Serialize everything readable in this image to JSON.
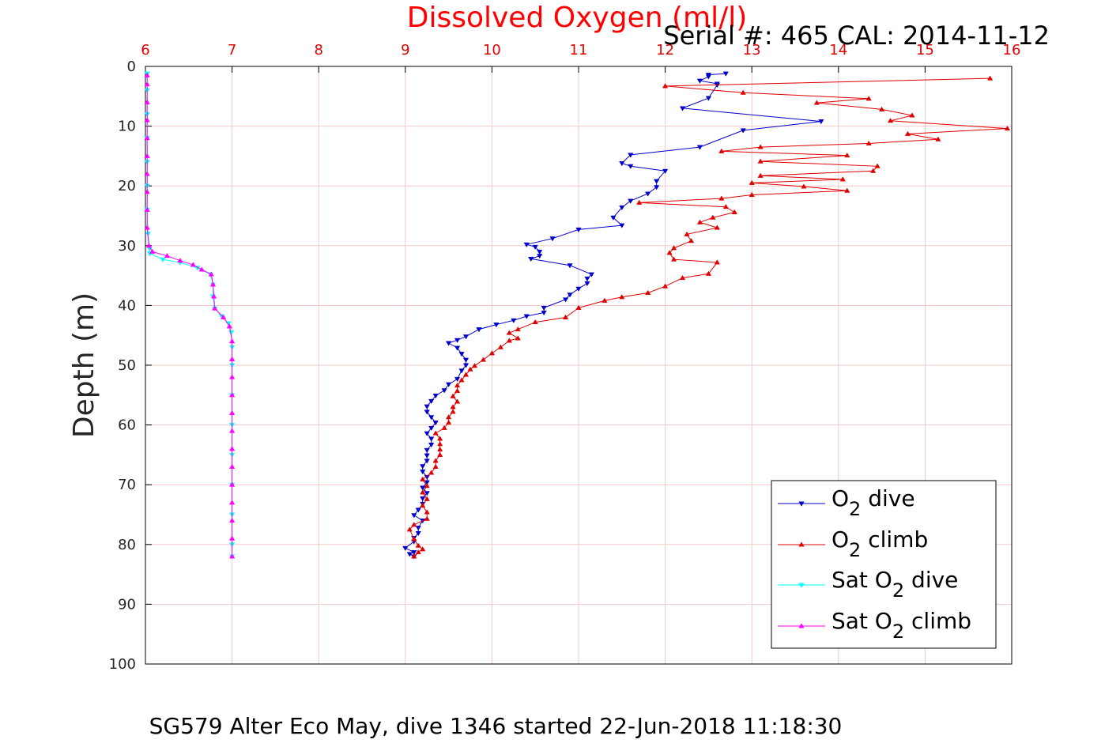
{
  "chart_data": {
    "type": "line",
    "title": "Dissolved Oxygen (ml/l)",
    "subtitle": "Serial #: 465  CAL: 2014-11-12",
    "caption": "SG579 Alter Eco May, dive 1346 started 22-Jun-2018 11:18:30",
    "xlabel": "",
    "ylabel": "Depth (m)",
    "xlim": [
      6,
      16
    ],
    "ylim": [
      0,
      100
    ],
    "y_reversed": true,
    "x_axis_position": "top",
    "grid": true,
    "legend_position": "lower-right",
    "x_ticks": [
      "6",
      "7",
      "8",
      "9",
      "10",
      "11",
      "12",
      "13",
      "14",
      "15",
      "16"
    ],
    "y_ticks": [
      "0",
      "10",
      "20",
      "30",
      "40",
      "50",
      "60",
      "70",
      "80",
      "90",
      "100"
    ],
    "colors": {
      "title": "#ff0000",
      "x_ticks": "#e00000",
      "grid": "#f3c8c8"
    },
    "series": [
      {
        "name": "O2 dive",
        "legend": {
          "pre": "O",
          "sub": "2",
          "post": " dive"
        },
        "color": "#0000cc",
        "marker": "triangle-down",
        "points": [
          [
            12.7,
            1.2
          ],
          [
            12.5,
            1.4
          ],
          [
            12.5,
            1.7
          ],
          [
            12.4,
            2.4
          ],
          [
            12.6,
            2.9
          ],
          [
            12.6,
            3.1
          ],
          [
            12.5,
            5.3
          ],
          [
            12.2,
            7
          ],
          [
            13.8,
            9.2
          ],
          [
            12.9,
            10.7
          ],
          [
            12.4,
            13.5
          ],
          [
            11.6,
            14.8
          ],
          [
            11.5,
            16.2
          ],
          [
            11.6,
            16.7
          ],
          [
            12.0,
            17.5
          ],
          [
            11.9,
            19.2
          ],
          [
            11.9,
            20.2
          ],
          [
            11.8,
            21.3
          ],
          [
            11.6,
            22.5
          ],
          [
            11.5,
            23.6
          ],
          [
            11.4,
            25.3
          ],
          [
            11.5,
            26.6
          ],
          [
            11.0,
            27.3
          ],
          [
            10.7,
            28.8
          ],
          [
            10.4,
            29.8
          ],
          [
            10.5,
            30.2
          ],
          [
            10.55,
            31.0
          ],
          [
            10.55,
            31.7
          ],
          [
            10.45,
            32.2
          ],
          [
            10.9,
            33.3
          ],
          [
            11.15,
            34.8
          ],
          [
            11.1,
            35.5
          ],
          [
            11.1,
            36.3
          ],
          [
            11.0,
            37.2
          ],
          [
            10.9,
            38.2
          ],
          [
            10.85,
            39.0
          ],
          [
            10.6,
            40.4
          ],
          [
            10.6,
            41.2
          ],
          [
            10.4,
            41.8
          ],
          [
            10.25,
            42.5
          ],
          [
            10.05,
            43.2
          ],
          [
            9.85,
            44.0
          ],
          [
            9.7,
            45.2
          ],
          [
            9.6,
            45.8
          ],
          [
            9.5,
            46.3
          ],
          [
            9.6,
            47.1
          ],
          [
            9.65,
            48.1
          ],
          [
            9.7,
            49.1
          ],
          [
            9.7,
            50.0
          ],
          [
            9.65,
            50.9
          ],
          [
            9.6,
            52.3
          ],
          [
            9.5,
            53.2
          ],
          [
            9.45,
            54.2
          ],
          [
            9.35,
            55.1
          ],
          [
            9.3,
            56.0
          ],
          [
            9.25,
            56.9
          ],
          [
            9.25,
            57.8
          ],
          [
            9.3,
            58.7
          ],
          [
            9.35,
            59.6
          ],
          [
            9.3,
            60.5
          ],
          [
            9.25,
            61.4
          ],
          [
            9.3,
            62.3
          ],
          [
            9.3,
            63.3
          ],
          [
            9.25,
            64.2
          ],
          [
            9.25,
            65.1
          ],
          [
            9.25,
            66.0
          ],
          [
            9.2,
            66.9
          ],
          [
            9.2,
            67.8
          ],
          [
            9.25,
            68.7
          ],
          [
            9.25,
            69.6
          ],
          [
            9.2,
            70.5
          ],
          [
            9.25,
            71.4
          ],
          [
            9.2,
            72.3
          ],
          [
            9.2,
            73.2
          ],
          [
            9.15,
            74.2
          ],
          [
            9.1,
            75.1
          ],
          [
            9.2,
            76.0
          ],
          [
            9.15,
            77.2
          ],
          [
            9.15,
            78.1
          ],
          [
            9.1,
            78.9
          ],
          [
            9.1,
            79.5
          ],
          [
            9.0,
            80.6
          ],
          [
            9.1,
            81.3
          ],
          [
            9.05,
            81.6
          ],
          [
            9.1,
            82.0
          ]
        ]
      },
      {
        "name": "O2 climb",
        "legend": {
          "pre": "O",
          "sub": "2",
          "post": " climb"
        },
        "color": "#e00000",
        "marker": "triangle-up",
        "points": [
          [
            9.1,
            82.0
          ],
          [
            9.15,
            81.3
          ],
          [
            9.2,
            80.8
          ],
          [
            9.15,
            80.2
          ],
          [
            9.1,
            79.1
          ],
          [
            9.05,
            77.5
          ],
          [
            9.1,
            76.7
          ],
          [
            9.25,
            75.7
          ],
          [
            9.25,
            74.6
          ],
          [
            9.2,
            73.5
          ],
          [
            9.25,
            72.4
          ],
          [
            9.2,
            71.3
          ],
          [
            9.25,
            70.2
          ],
          [
            9.2,
            69.1
          ],
          [
            9.3,
            68.0
          ],
          [
            9.35,
            67.0
          ],
          [
            9.35,
            66.0
          ],
          [
            9.4,
            65.0
          ],
          [
            9.4,
            64.1
          ],
          [
            9.4,
            63.2
          ],
          [
            9.4,
            62.3
          ],
          [
            9.35,
            61.4
          ],
          [
            9.45,
            60.5
          ],
          [
            9.5,
            59.6
          ],
          [
            9.5,
            58.7
          ],
          [
            9.55,
            57.8
          ],
          [
            9.55,
            57.0
          ],
          [
            9.6,
            56.1
          ],
          [
            9.55,
            55.2
          ],
          [
            9.6,
            54.3
          ],
          [
            9.6,
            53.4
          ],
          [
            9.65,
            52.5
          ],
          [
            9.7,
            51.6
          ],
          [
            9.75,
            50.7
          ],
          [
            9.8,
            50.1
          ],
          [
            9.9,
            49.1
          ],
          [
            10.0,
            48.0
          ],
          [
            10.1,
            47.0
          ],
          [
            10.2,
            45.9
          ],
          [
            10.3,
            45.5
          ],
          [
            10.2,
            44.6
          ],
          [
            10.3,
            44.0
          ],
          [
            10.5,
            42.8
          ],
          [
            10.85,
            42.0
          ],
          [
            11.0,
            40.4
          ],
          [
            11.3,
            39.2
          ],
          [
            11.5,
            38.6
          ],
          [
            11.8,
            37.9
          ],
          [
            12.0,
            36.8
          ],
          [
            12.2,
            35.4
          ],
          [
            12.5,
            34.7
          ],
          [
            12.6,
            32.8
          ],
          [
            12.1,
            32.3
          ],
          [
            12.05,
            31.2
          ],
          [
            12.1,
            30.4
          ],
          [
            12.3,
            29.2
          ],
          [
            12.25,
            28.1
          ],
          [
            12.6,
            27.0
          ],
          [
            12.4,
            26.1
          ],
          [
            12.55,
            25.3
          ],
          [
            12.8,
            24.4
          ],
          [
            12.7,
            23.5
          ],
          [
            11.7,
            22.8
          ],
          [
            12.65,
            22.1
          ],
          [
            13.0,
            21.5
          ],
          [
            14.1,
            20.8
          ],
          [
            13.6,
            20.1
          ],
          [
            13.0,
            19.5
          ],
          [
            14.05,
            18.9
          ],
          [
            13.1,
            18.3
          ],
          [
            14.4,
            17.5
          ],
          [
            14.45,
            16.7
          ],
          [
            13.1,
            15.9
          ],
          [
            14.1,
            14.9
          ],
          [
            12.65,
            14.2
          ],
          [
            13.1,
            13.5
          ],
          [
            14.35,
            12.9
          ],
          [
            15.15,
            12.2
          ],
          [
            14.8,
            11.3
          ],
          [
            15.95,
            10.4
          ],
          [
            14.6,
            9.1
          ],
          [
            14.85,
            8.2
          ],
          [
            14.5,
            7.2
          ],
          [
            13.75,
            6.1
          ],
          [
            14.35,
            5.4
          ],
          [
            12.9,
            4.4
          ],
          [
            12.0,
            3.3
          ],
          [
            15.75,
            2.0
          ]
        ]
      },
      {
        "name": "Sat O2 dive",
        "legend": {
          "pre": "Sat O",
          "sub": "2",
          "post": " dive"
        },
        "color": "#00ffff",
        "marker": "triangle-down",
        "points": [
          [
            6.02,
            1.2
          ],
          [
            6.02,
            4
          ],
          [
            6.02,
            8
          ],
          [
            6.02,
            12
          ],
          [
            6.02,
            16
          ],
          [
            6.02,
            20
          ],
          [
            6.02,
            24
          ],
          [
            6.03,
            28
          ],
          [
            6.05,
            30.5
          ],
          [
            6.05,
            31.3
          ],
          [
            6.2,
            32.3
          ],
          [
            6.4,
            32.8
          ],
          [
            6.6,
            33.7
          ],
          [
            6.75,
            34.8
          ],
          [
            6.78,
            36.5
          ],
          [
            6.78,
            38.5
          ],
          [
            6.8,
            40.5
          ],
          [
            6.88,
            41.8
          ],
          [
            6.96,
            43.0
          ],
          [
            6.99,
            44.5
          ],
          [
            7.0,
            47
          ],
          [
            7.0,
            50
          ],
          [
            7.0,
            55
          ],
          [
            7.0,
            60
          ],
          [
            7.0,
            65
          ],
          [
            7.0,
            70
          ],
          [
            7.0,
            75
          ],
          [
            7.0,
            80
          ],
          [
            7.0,
            82
          ]
        ]
      },
      {
        "name": "Sat O2 climb",
        "legend": {
          "pre": "Sat O",
          "sub": "2",
          "post": " climb"
        },
        "color": "#ff00ff",
        "marker": "triangle-up",
        "points": [
          [
            7.0,
            82
          ],
          [
            7.0,
            79
          ],
          [
            7.0,
            76
          ],
          [
            7.0,
            73
          ],
          [
            7.0,
            70
          ],
          [
            7.0,
            67
          ],
          [
            7.0,
            64
          ],
          [
            7.0,
            61
          ],
          [
            7.0,
            58
          ],
          [
            7.0,
            55
          ],
          [
            7.0,
            52
          ],
          [
            7.0,
            49
          ],
          [
            7.0,
            46
          ],
          [
            6.97,
            43.5
          ],
          [
            6.9,
            42.0
          ],
          [
            6.8,
            40.5
          ],
          [
            6.79,
            38.5
          ],
          [
            6.78,
            36.5
          ],
          [
            6.76,
            34.8
          ],
          [
            6.65,
            34.0
          ],
          [
            6.55,
            33.2
          ],
          [
            6.4,
            32.5
          ],
          [
            6.25,
            31.7
          ],
          [
            6.08,
            31.0
          ],
          [
            6.04,
            30.0
          ],
          [
            6.02,
            27
          ],
          [
            6.02,
            24
          ],
          [
            6.02,
            21
          ],
          [
            6.02,
            18
          ],
          [
            6.02,
            15
          ],
          [
            6.02,
            12
          ],
          [
            6.02,
            9
          ],
          [
            6.02,
            6
          ],
          [
            6.02,
            3
          ],
          [
            6.02,
            1.5
          ]
        ]
      }
    ]
  }
}
